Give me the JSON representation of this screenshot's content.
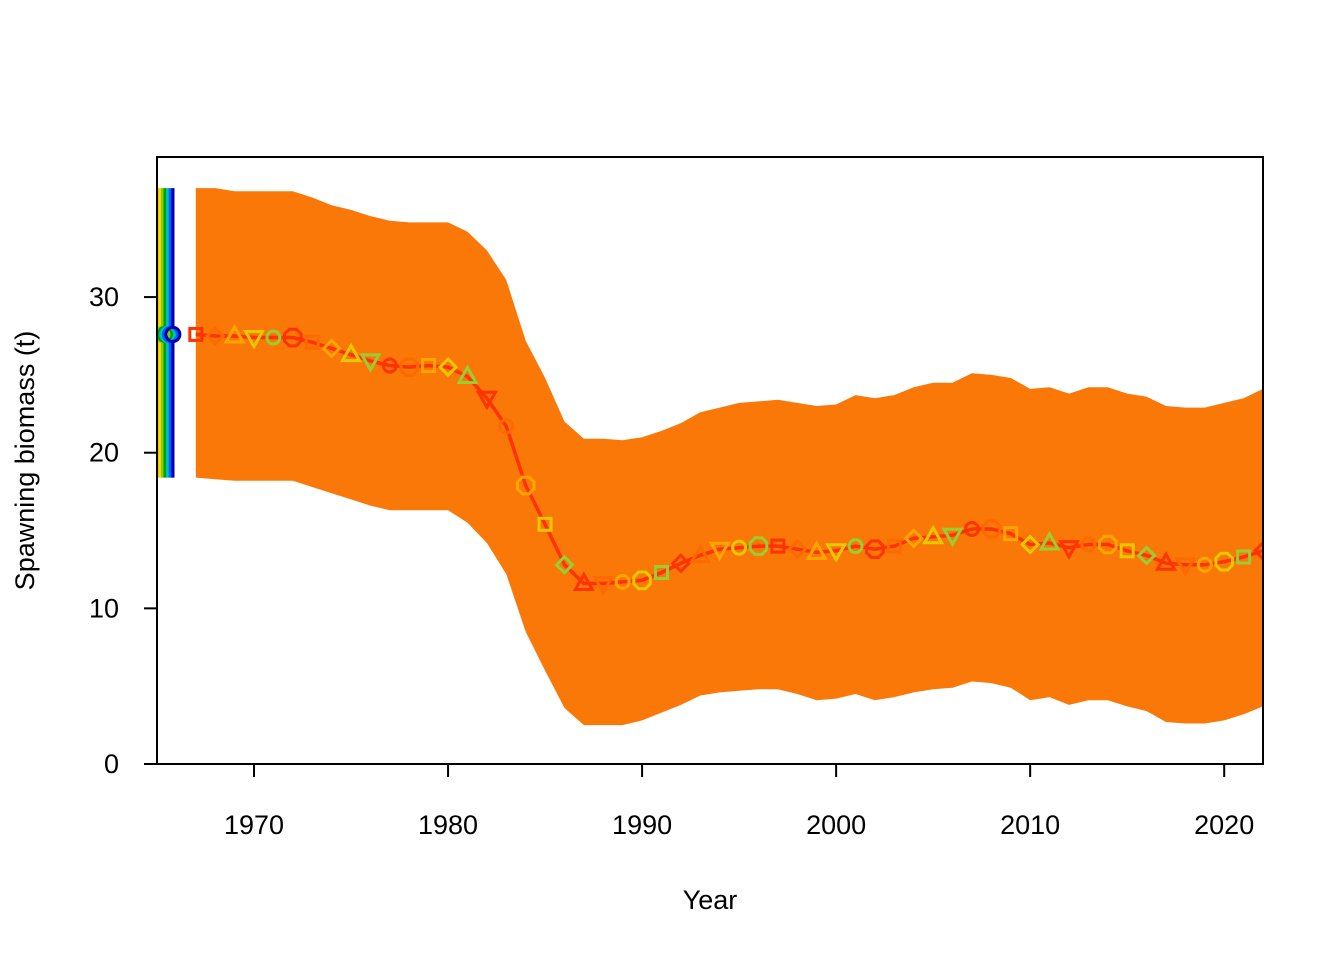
{
  "chart_data": {
    "type": "line",
    "title": "",
    "xlabel": "Year",
    "ylabel": "Spawning biomass (t)",
    "xlim": [
      1965,
      2022
    ],
    "ylim": [
      0,
      39
    ],
    "x_ticks": [
      1970,
      1980,
      1990,
      2000,
      2010,
      2020
    ],
    "y_ticks": [
      0,
      10,
      20,
      30
    ],
    "grid": false,
    "legend": "none",
    "colors": {
      "band": "#F97807",
      "line": "#FF3300",
      "marker_cycle": [
        "#FF3300",
        "#FF6A00",
        "#FFA500",
        "#E6C800",
        "#9ACD32"
      ],
      "virgin_bar_colors": [
        "#FF0000",
        "#FF7F00",
        "#FFD700",
        "#7FD000",
        "#00A000",
        "#00C0C0",
        "#0060FF",
        "#0000B0"
      ]
    },
    "virgin_point": {
      "x": 1965.5,
      "y": 27.6,
      "low": 18.4,
      "high": 37.0
    },
    "series": [
      {
        "x": [
          1967,
          1968,
          1969,
          1970,
          1971,
          1972,
          1973,
          1974,
          1975,
          1976,
          1977,
          1978,
          1979,
          1980,
          1981,
          1982,
          1983,
          1984,
          1985,
          1986,
          1987,
          1988,
          1989,
          1990,
          1991,
          1992,
          1993,
          1994,
          1995,
          1996,
          1997,
          1998,
          1999,
          2000,
          2001,
          2002,
          2003,
          2004,
          2005,
          2006,
          2007,
          2008,
          2009,
          2010,
          2011,
          2012,
          2013,
          2014,
          2015,
          2016,
          2017,
          2018,
          2019,
          2020,
          2021,
          2022
        ],
        "values": [
          27.6,
          27.5,
          27.5,
          27.4,
          27.4,
          27.4,
          27.1,
          26.7,
          26.3,
          25.9,
          25.6,
          25.5,
          25.6,
          25.5,
          24.9,
          23.5,
          21.7,
          17.9,
          15.4,
          12.8,
          11.6,
          11.6,
          11.7,
          11.8,
          12.3,
          12.9,
          13.4,
          13.8,
          13.9,
          14.0,
          14.0,
          13.8,
          13.6,
          13.7,
          14.0,
          13.8,
          14.0,
          14.5,
          14.6,
          14.7,
          15.1,
          15.1,
          14.8,
          14.1,
          14.2,
          13.9,
          14.1,
          14.1,
          13.7,
          13.4,
          12.9,
          12.8,
          12.8,
          13.0,
          13.3,
          13.7
        ],
        "lower": [
          18.4,
          18.3,
          18.2,
          18.2,
          18.2,
          18.2,
          17.8,
          17.4,
          17.0,
          16.6,
          16.3,
          16.3,
          16.3,
          16.3,
          15.5,
          14.2,
          12.2,
          8.5,
          6.0,
          3.6,
          2.5,
          2.5,
          2.5,
          2.8,
          3.3,
          3.8,
          4.4,
          4.6,
          4.7,
          4.8,
          4.8,
          4.5,
          4.1,
          4.2,
          4.5,
          4.1,
          4.3,
          4.6,
          4.8,
          4.9,
          5.3,
          5.2,
          4.9,
          4.1,
          4.3,
          3.8,
          4.1,
          4.1,
          3.7,
          3.4,
          2.7,
          2.6,
          2.6,
          2.8,
          3.2,
          3.7
        ],
        "upper": [
          37.0,
          37.0,
          36.8,
          36.8,
          36.8,
          36.8,
          36.4,
          35.9,
          35.6,
          35.2,
          34.9,
          34.8,
          34.8,
          34.8,
          34.2,
          33.0,
          31.1,
          27.2,
          24.8,
          22.0,
          20.9,
          20.9,
          20.8,
          21.0,
          21.4,
          21.9,
          22.6,
          22.9,
          23.2,
          23.3,
          23.4,
          23.2,
          23.0,
          23.1,
          23.7,
          23.5,
          23.7,
          24.2,
          24.5,
          24.5,
          25.1,
          25.0,
          24.8,
          24.1,
          24.2,
          23.8,
          24.2,
          24.2,
          23.8,
          23.6,
          23.0,
          22.9,
          22.9,
          23.2,
          23.5,
          24.1
        ]
      }
    ]
  }
}
